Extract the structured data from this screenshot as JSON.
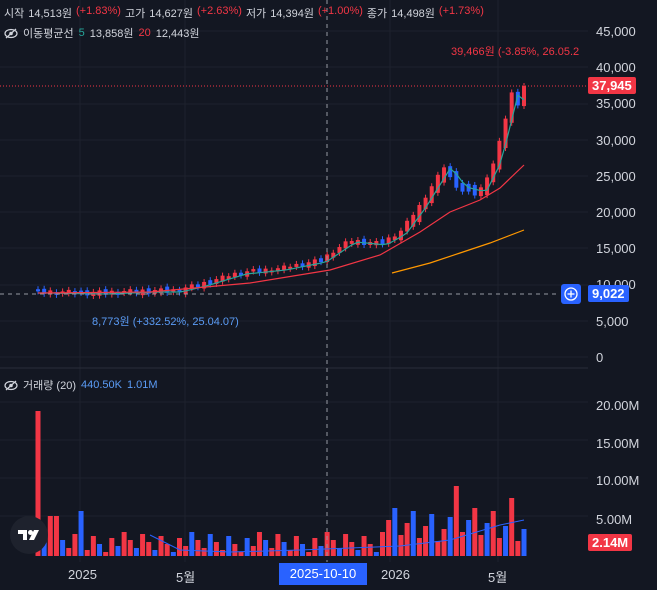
{
  "ohlc": {
    "open_label": "시작",
    "open": "14,513원",
    "open_chg": "(+1.83%)",
    "high_label": "고가",
    "high": "14,627원",
    "high_chg": "(+2.63%)",
    "low_label": "저가",
    "low": "14,394원",
    "low_chg": "(+1.00%)",
    "close_label": "종가",
    "close": "14,498원",
    "close_chg": "(+1.73%)"
  },
  "ma": {
    "label": "이동평균선",
    "p1": "5",
    "v1": "13,858원",
    "p2": "20",
    "v2": "12,443원"
  },
  "volume": {
    "label": "거래량 (20)",
    "v1": "440.50K",
    "v2": "1.01M"
  },
  "price_axis": [
    "45,000",
    "40,000",
    "35,000",
    "30,000",
    "25,000",
    "20,000",
    "15,000",
    "10,000",
    "5,000",
    "0"
  ],
  "price_current": "37,945",
  "price_cursor": "9,022",
  "volume_axis": [
    "20.00M",
    "15.00M",
    "10.00M",
    "5.00M"
  ],
  "volume_current": "2.14M",
  "x_axis": {
    "labels": [
      "2025",
      "5월",
      "2026",
      "5월"
    ],
    "selected": "2025-10-10"
  },
  "annotations": {
    "high": "39,466원 (-3.85%, 26.05.2",
    "low": "8,773원 (+332.52%, 25.04.07)"
  },
  "colors": {
    "up": "#f23645",
    "down": "#2962ff",
    "ma5": "#26a69a",
    "ma20": "#f23645",
    "ma60": "#ff9800",
    "vol_ma": "#2962ff"
  }
}
